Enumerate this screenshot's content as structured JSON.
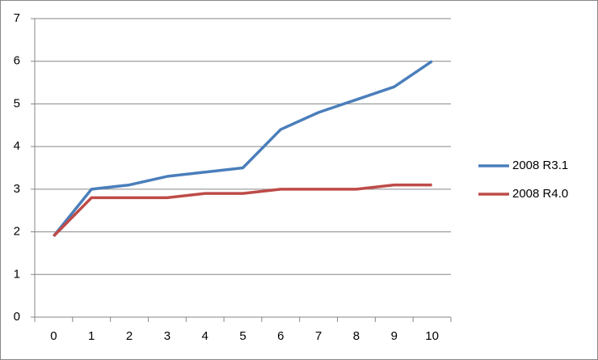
{
  "chart_data": {
    "type": "line",
    "categories": [
      "0",
      "1",
      "2",
      "3",
      "4",
      "5",
      "6",
      "7",
      "8",
      "9",
      "10"
    ],
    "series": [
      {
        "name": "2008 R3.1",
        "color": "#4a7ebb",
        "values": [
          1.9,
          3.0,
          3.1,
          3.3,
          3.4,
          3.5,
          4.4,
          4.8,
          5.1,
          5.4,
          6.0
        ]
      },
      {
        "name": "2008 R4.0",
        "color": "#be4b48",
        "values": [
          1.9,
          2.8,
          2.8,
          2.8,
          2.9,
          2.9,
          3.0,
          3.0,
          3.0,
          3.1,
          3.1
        ]
      }
    ],
    "ylim": [
      0,
      7
    ],
    "yticks": [
      0,
      1,
      2,
      3,
      4,
      5,
      6,
      7
    ],
    "grid": true,
    "legend": "right"
  }
}
